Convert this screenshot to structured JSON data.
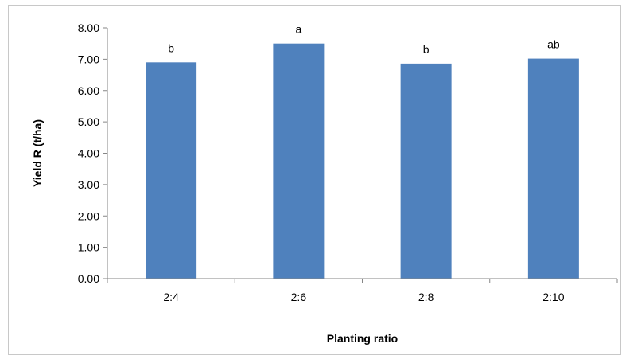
{
  "chart_data": {
    "type": "bar",
    "categories": [
      "2:4",
      "2:6",
      "2:8",
      "2:10"
    ],
    "values": [
      6.9,
      7.5,
      6.86,
      7.02
    ],
    "data_labels": [
      "b",
      "a",
      "b",
      "ab"
    ],
    "title": "",
    "xlabel": "Planting ratio",
    "ylabel": "Yield R (t/ha)",
    "ylim": [
      0,
      8
    ],
    "yticks": [
      "0.00",
      "1.00",
      "2.00",
      "3.00",
      "4.00",
      "5.00",
      "6.00",
      "7.00",
      "8.00"
    ],
    "bar_color": "#4f81bd",
    "grid": false,
    "legend": "none"
  }
}
